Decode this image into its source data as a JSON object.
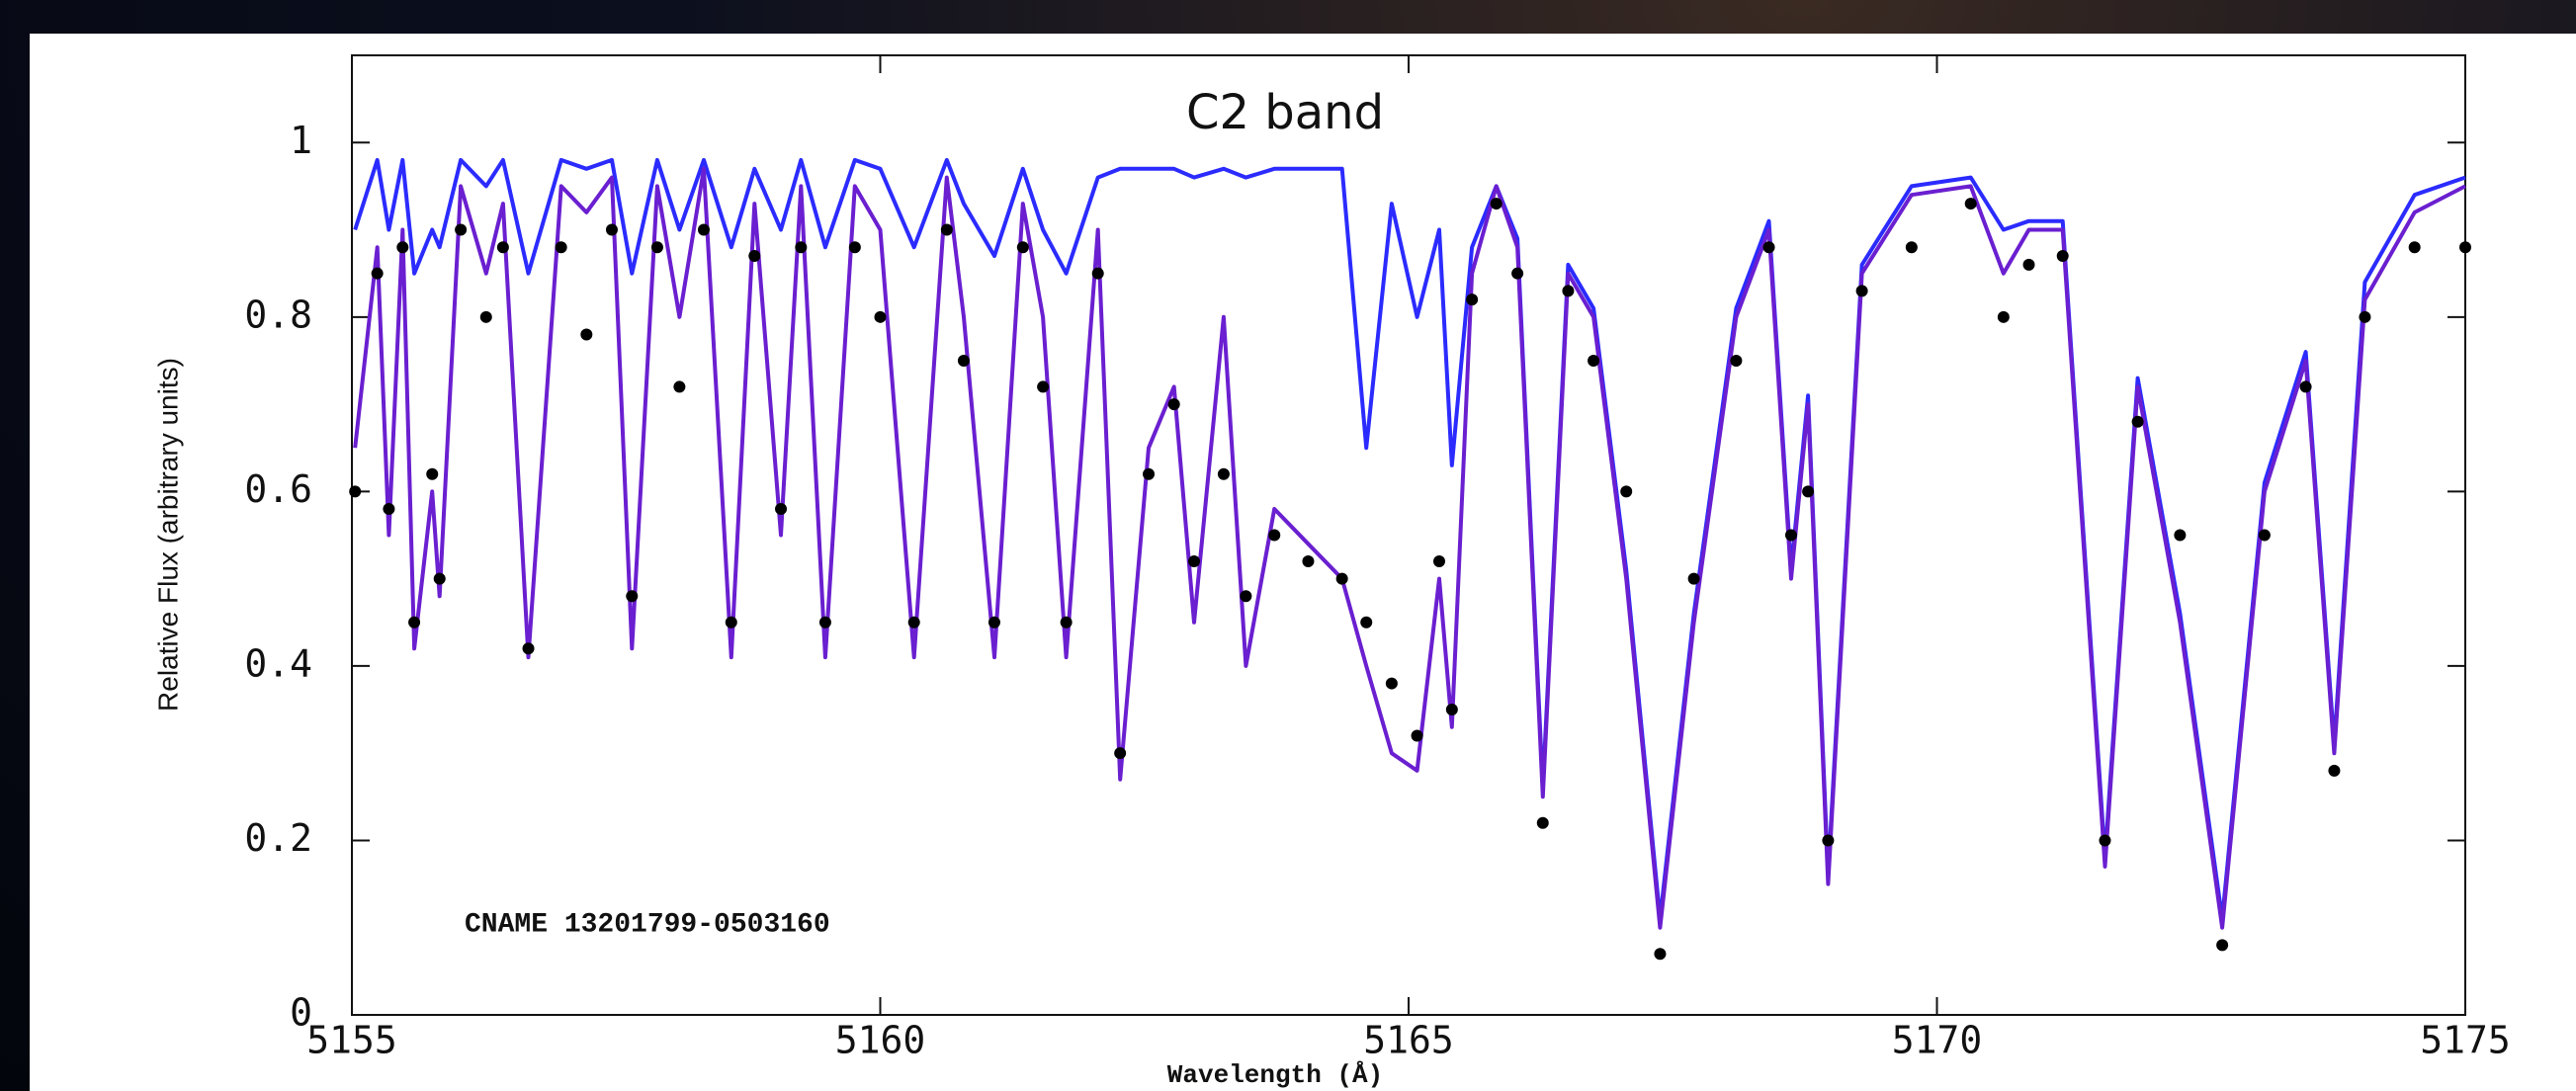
{
  "chart_data": {
    "type": "line",
    "title": "C2 band",
    "annotation": "CNAME 13201799-0503160",
    "xlabel": "Wavelength (Å)",
    "ylabel": "Relative Flux (arbitrary units)",
    "xlim": [
      5155,
      5175
    ],
    "xticks": [
      5155,
      5160,
      5165,
      5170,
      5175
    ],
    "ylim": [
      0,
      1.1
    ],
    "yticks": [
      0,
      0.2,
      0.4,
      0.6,
      0.8,
      1
    ],
    "x": [
      5155.03,
      5155.24,
      5155.35,
      5155.48,
      5155.59,
      5155.76,
      5155.83,
      5156.03,
      5156.27,
      5156.43,
      5156.67,
      5156.98,
      5157.22,
      5157.46,
      5157.65,
      5157.89,
      5158.1,
      5158.33,
      5158.59,
      5158.81,
      5159.06,
      5159.25,
      5159.48,
      5159.76,
      5160.0,
      5160.32,
      5160.63,
      5160.79,
      5161.08,
      5161.35,
      5161.54,
      5161.76,
      5162.06,
      5162.27,
      5162.54,
      5162.78,
      5162.97,
      5163.25,
      5163.46,
      5163.73,
      5164.05,
      5164.37,
      5164.6,
      5164.84,
      5165.08,
      5165.29,
      5165.41,
      5165.6,
      5165.83,
      5166.03,
      5166.27,
      5166.51,
      5166.75,
      5167.06,
      5167.38,
      5167.7,
      5168.1,
      5168.41,
      5168.62,
      5168.78,
      5168.97,
      5169.29,
      5169.76,
      5170.32,
      5170.63,
      5170.87,
      5171.19,
      5171.59,
      5171.9,
      5172.3,
      5172.7,
      5173.1,
      5173.49,
      5173.76,
      5174.05,
      5174.52,
      5175.0
    ],
    "series": [
      {
        "color": "#2b2bff",
        "values": [
          0.9,
          0.98,
          0.9,
          0.98,
          0.85,
          0.9,
          0.88,
          0.98,
          0.95,
          0.98,
          0.85,
          0.98,
          0.97,
          0.98,
          0.85,
          0.98,
          0.9,
          0.98,
          0.88,
          0.97,
          0.9,
          0.98,
          0.88,
          0.98,
          0.97,
          0.88,
          0.98,
          0.93,
          0.87,
          0.97,
          0.9,
          0.85,
          0.96,
          0.97,
          0.97,
          0.97,
          0.96,
          0.97,
          0.96,
          0.97,
          0.97,
          0.97,
          0.65,
          0.93,
          0.8,
          0.9,
          0.63,
          0.88,
          0.95,
          0.89,
          0.26,
          0.86,
          0.81,
          0.51,
          0.11,
          0.46,
          0.81,
          0.91,
          0.51,
          0.71,
          0.16,
          0.86,
          0.95,
          0.96,
          0.9,
          0.91,
          0.91,
          0.18,
          0.73,
          0.46,
          0.11,
          0.61,
          0.76,
          0.31,
          0.84,
          0.94,
          0.96
        ]
      },
      {
        "color": "#6a1fd0",
        "values": [
          0.65,
          0.88,
          0.55,
          0.9,
          0.42,
          0.6,
          0.48,
          0.95,
          0.85,
          0.93,
          0.41,
          0.95,
          0.92,
          0.96,
          0.42,
          0.95,
          0.8,
          0.97,
          0.41,
          0.93,
          0.55,
          0.95,
          0.41,
          0.95,
          0.9,
          0.41,
          0.96,
          0.8,
          0.41,
          0.93,
          0.8,
          0.41,
          0.9,
          0.27,
          0.65,
          0.72,
          0.45,
          0.8,
          0.4,
          0.58,
          0.54,
          0.5,
          0.4,
          0.3,
          0.28,
          0.5,
          0.33,
          0.85,
          0.95,
          0.88,
          0.25,
          0.85,
          0.8,
          0.5,
          0.1,
          0.45,
          0.8,
          0.9,
          0.5,
          0.7,
          0.15,
          0.85,
          0.94,
          0.95,
          0.85,
          0.9,
          0.9,
          0.17,
          0.72,
          0.45,
          0.1,
          0.6,
          0.75,
          0.3,
          0.82,
          0.92,
          0.95
        ]
      },
      {
        "color": "#000000",
        "marker": "dot",
        "values": [
          0.6,
          0.85,
          0.58,
          0.88,
          0.45,
          0.62,
          0.5,
          0.9,
          0.8,
          0.88,
          0.42,
          0.88,
          0.78,
          0.9,
          0.48,
          0.88,
          0.72,
          0.9,
          0.45,
          0.87,
          0.58,
          0.88,
          0.45,
          0.88,
          0.8,
          0.45,
          0.9,
          0.75,
          0.45,
          0.88,
          0.72,
          0.45,
          0.85,
          0.3,
          0.62,
          0.7,
          0.52,
          0.62,
          0.48,
          0.55,
          0.52,
          0.5,
          0.45,
          0.38,
          0.32,
          0.52,
          0.35,
          0.82,
          0.93,
          0.85,
          0.22,
          0.83,
          0.75,
          0.6,
          0.07,
          0.5,
          0.75,
          0.88,
          0.55,
          0.6,
          0.2,
          0.83,
          0.88,
          0.93,
          0.8,
          0.86,
          0.87,
          0.2,
          0.68,
          0.55,
          0.08,
          0.55,
          0.72,
          0.28,
          0.8,
          0.88,
          0.88
        ]
      }
    ]
  }
}
